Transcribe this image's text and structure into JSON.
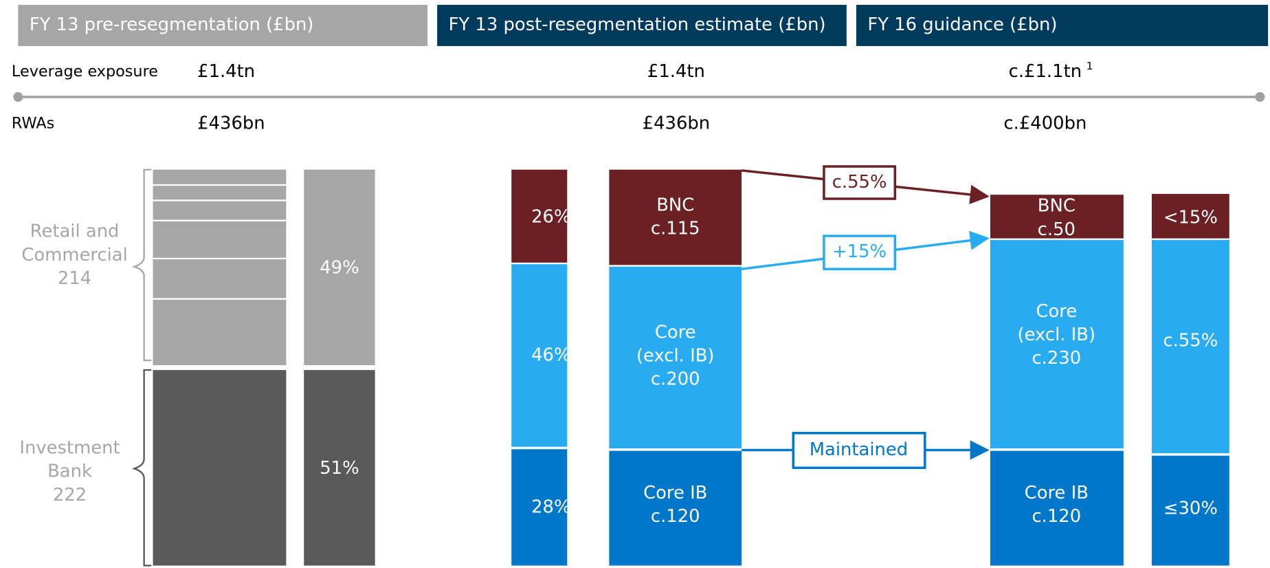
{
  "headers": [
    "FY 13 pre-resegmentation (£bn)",
    "FY 13 post-resegmentation estimate (£bn)",
    "FY 16 guidance (£bn)"
  ],
  "leverage": {
    "label": "Leverage exposure",
    "values": [
      "£1.4tn",
      "£1.4tn",
      "c.£1.1tn"
    ],
    "footnote": "1"
  },
  "rwas": {
    "label": "RWAs",
    "values": [
      "£436bn",
      "£436bn",
      "c.£400bn"
    ]
  },
  "pre": {
    "segments": [
      {
        "label": [
          "Retail and",
          "Commercial",
          "214"
        ]
      },
      {
        "label": [
          "Investment",
          "Bank",
          "222"
        ]
      }
    ],
    "shares": [
      "49%",
      "51%"
    ]
  },
  "post": {
    "shares": [
      "26%",
      "46%",
      "28%"
    ],
    "segments": [
      [
        "BNC",
        "c.115"
      ],
      [
        "Core",
        "(excl. IB)",
        "c.200"
      ],
      [
        "Core IB",
        "c.120"
      ]
    ]
  },
  "arrows": [
    "c.55%",
    "+15%",
    "Maintained"
  ],
  "fy16": {
    "segments": [
      [
        "BNC",
        "c.50"
      ],
      [
        "Core",
        "(excl. IB)",
        "c.230"
      ],
      [
        "Core IB",
        "c.120"
      ]
    ],
    "shares": [
      "<15%",
      "c.55%",
      "≤30%"
    ]
  }
}
